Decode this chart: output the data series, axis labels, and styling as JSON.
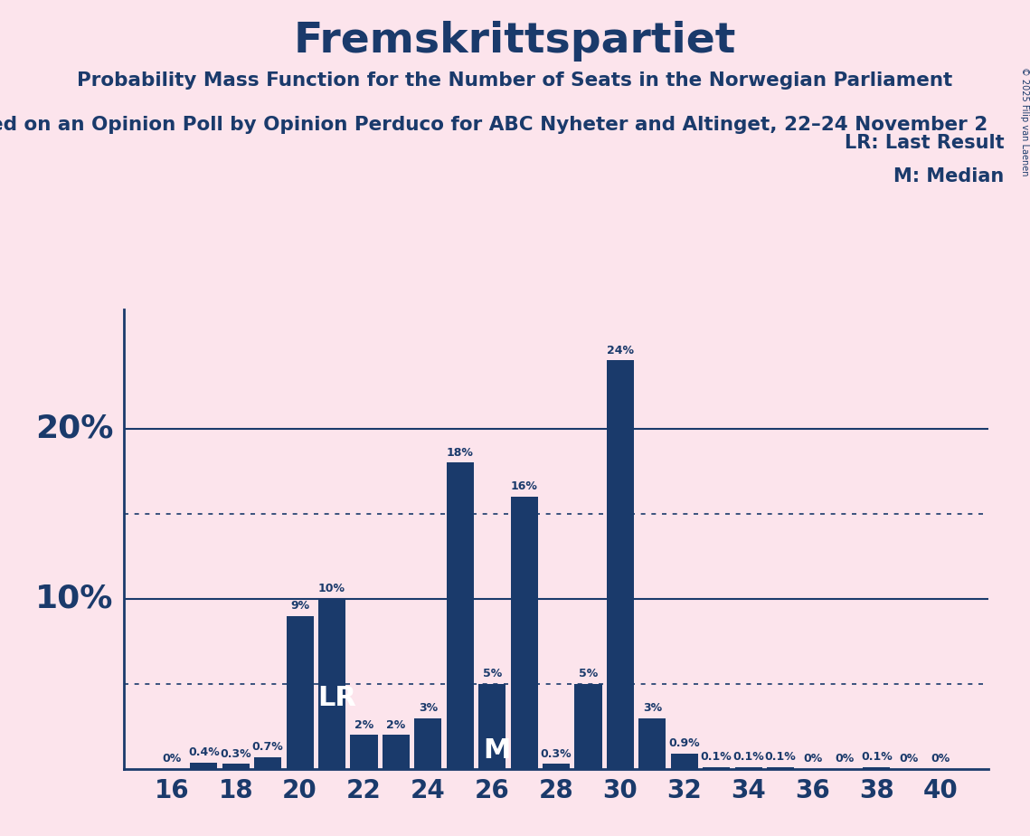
{
  "title": "Fremskrittspartiet",
  "subtitle1": "Probability Mass Function for the Number of Seats in the Norwegian Parliament",
  "subtitle2": "ed on an Opinion Poll by Opinion Perduco for ABC Nyheter and Altinget, 22–24 November 2",
  "copyright": "© 2025 Filip van Laenen",
  "background_color": "#fce4ec",
  "bar_color": "#1a3a6b",
  "title_color": "#1a3a6b",
  "seats": [
    16,
    17,
    18,
    19,
    20,
    21,
    22,
    23,
    24,
    25,
    26,
    27,
    28,
    29,
    30,
    31,
    32,
    33,
    34,
    35,
    36,
    37,
    38,
    39,
    40
  ],
  "probabilities": [
    0.0,
    0.4,
    0.3,
    0.7,
    9.0,
    10.0,
    2.0,
    2.0,
    3.0,
    18.0,
    5.0,
    16.0,
    0.3,
    5.0,
    24.0,
    3.0,
    0.9,
    0.1,
    0.1,
    0.1,
    0.0,
    0.0,
    0.1,
    0.0,
    0.0
  ],
  "labels": [
    "0%",
    "0.4%",
    "0.3%",
    "0.7%",
    "9%",
    "10%",
    "2%",
    "2%",
    "3%",
    "18%",
    "5%",
    "16%",
    "0.3%",
    "5%",
    "24%",
    "3%",
    "0.9%",
    "0.1%",
    "0.1%",
    "0.1%",
    "0%",
    "0%",
    "0.1%",
    "0%",
    "0%"
  ],
  "lr_seat": 21,
  "median_seat": 26,
  "ylim": [
    0,
    27
  ],
  "xlim": [
    14.5,
    41.5
  ],
  "xticks": [
    16,
    18,
    20,
    22,
    24,
    26,
    28,
    30,
    32,
    34,
    36,
    38,
    40
  ],
  "solid_lines": [
    10.0,
    20.0
  ],
  "dotted_lines": [
    5.0,
    15.0
  ],
  "lr_label": "LR: Last Result",
  "median_label": "M: Median",
  "ylabel_20_text": "20%",
  "ylabel_10_text": "10%",
  "bar_width": 0.85
}
